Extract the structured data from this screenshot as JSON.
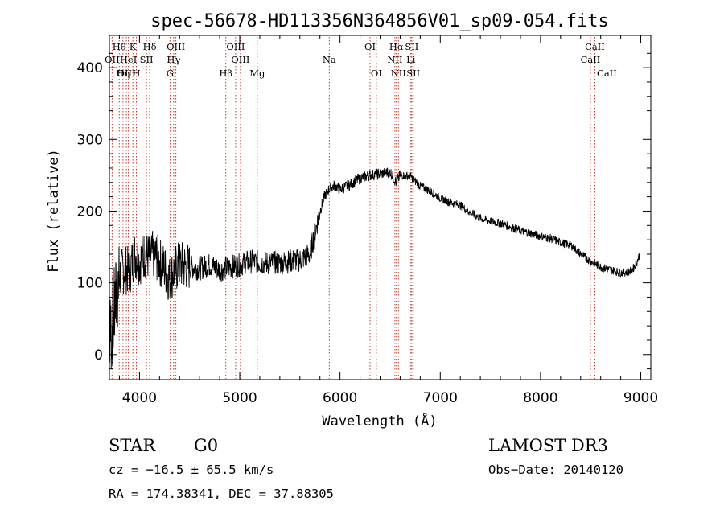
{
  "chart_data": {
    "type": "line",
    "title": "spec-56678-HD113356N364856V01_sp09-054.fits",
    "xlabel": "Wavelength (Å)",
    "ylabel": "Flux (relative)",
    "xlim": [
      3700,
      9100
    ],
    "ylim": [
      -35,
      445
    ],
    "xticks": [
      4000,
      5000,
      6000,
      7000,
      8000,
      9000
    ],
    "yticks": [
      0,
      100,
      200,
      300,
      400
    ],
    "grid": false,
    "series": [
      {
        "x": [
          3700,
          3750,
          3800,
          3850,
          3900,
          3950,
          4000,
          4050,
          4100,
          4150,
          4200,
          4250,
          4300,
          4350,
          4400,
          4500,
          4600,
          4700,
          4800,
          4900,
          5000,
          5100,
          5200,
          5300,
          5400,
          5500,
          5600,
          5700,
          5750,
          5800,
          5850,
          5900,
          5950,
          6000,
          6100,
          6200,
          6300,
          6400,
          6500,
          6560,
          6600,
          6700,
          6800,
          6900,
          7000,
          7100,
          7200,
          7300,
          7400,
          7500,
          7600,
          7700,
          7800,
          7900,
          8000,
          8100,
          8200,
          8300,
          8400,
          8500,
          8600,
          8700,
          8800,
          8900,
          8950,
          8990
        ],
        "y": [
          20,
          60,
          110,
          120,
          115,
          140,
          130,
          140,
          135,
          140,
          130,
          120,
          105,
          118,
          125,
          122,
          120,
          125,
          118,
          122,
          125,
          130,
          128,
          127,
          128,
          130,
          132,
          140,
          170,
          200,
          222,
          232,
          236,
          230,
          237,
          246,
          250,
          252,
          255,
          240,
          250,
          249,
          235,
          228,
          218,
          212,
          208,
          198,
          190,
          186,
          183,
          178,
          173,
          169,
          165,
          162,
          156,
          153,
          140,
          130,
          122,
          118,
          114,
          116,
          125,
          140
        ]
      }
    ],
    "line_markers": [
      {
        "label": "Hθ",
        "x": 3798,
        "row": 0
      },
      {
        "label": "OII",
        "x": 3727,
        "row": 1
      },
      {
        "label": "OIII",
        "x": 3869,
        "row": 2
      },
      {
        "label": "K",
        "x": 3934,
        "row": 0
      },
      {
        "label": "HeI",
        "x": 3889,
        "row": 1
      },
      {
        "label": "Hη",
        "x": 3835,
        "row": 2
      },
      {
        "label": "H",
        "x": 3969,
        "row": 2
      },
      {
        "label": "SII",
        "x": 4070,
        "row": 1
      },
      {
        "label": "Hδ",
        "x": 4102,
        "row": 0
      },
      {
        "label": "OIII",
        "x": 4363,
        "row": 0
      },
      {
        "label": "Hγ",
        "x": 4341,
        "row": 1
      },
      {
        "label": "G",
        "x": 4305,
        "row": 2
      },
      {
        "label": "Hβ",
        "x": 4861,
        "row": 2
      },
      {
        "label": "OIII",
        "x": 4959,
        "row": 0
      },
      {
        "label": "OIII",
        "x": 5007,
        "row": 1
      },
      {
        "label": "Mg",
        "x": 5175,
        "row": 2
      },
      {
        "label": "Na",
        "x": 5893,
        "row": 1
      },
      {
        "label": "OI",
        "x": 6300,
        "row": 0
      },
      {
        "label": "OI",
        "x": 6363,
        "row": 2
      },
      {
        "label": "Hα",
        "x": 6563,
        "row": 0
      },
      {
        "label": "NII",
        "x": 6548,
        "row": 1
      },
      {
        "label": "NII",
        "x": 6583,
        "row": 2
      },
      {
        "label": "SII",
        "x": 6716,
        "row": 0
      },
      {
        "label": "Li",
        "x": 6707,
        "row": 1
      },
      {
        "label": "SII",
        "x": 6731,
        "row": 2
      },
      {
        "label": "CaII",
        "x": 8542,
        "row": 0
      },
      {
        "label": "CaII",
        "x": 8498,
        "row": 1
      },
      {
        "label": "CaII",
        "x": 8662,
        "row": 2
      }
    ],
    "line_color": "#c0392b"
  },
  "info": {
    "object_class": "STAR",
    "subclass": "G0",
    "survey": "LAMOST DR3",
    "redshift": "cz = −16.5 ± 65.5 km/s",
    "obs_date": "Obs−Date: 20140120",
    "coords": "RA = 174.38341, DEC =  37.88305"
  }
}
